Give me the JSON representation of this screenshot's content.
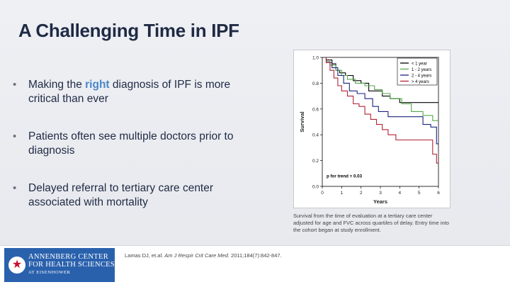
{
  "slide": {
    "title": "A Challenging Time in IPF",
    "bullets": [
      {
        "before": "Making the ",
        "accent": "right",
        "after": " diagnosis of IPF is more critical than ever"
      },
      {
        "text": "Patients often see multiple doctors prior to diagnosis"
      },
      {
        "text": "Delayed referral to tertiary care center associated with mortality"
      }
    ],
    "caption": "Survival from the time of evaluation at a tertiary care center adjusted for age and FVC across quartiles of delay. Entry time into the cohort began at study enrollment.",
    "citation": {
      "authors": "Lamas DJ, et.al. ",
      "journal": "Am J Respir Crit Care Med.",
      "details": " 2011;184(7):842-847."
    }
  },
  "logo": {
    "line1": "ANNENBERG CENTER",
    "line2": "FOR HEALTH SCIENCES",
    "line3": "AT EISENHOWER",
    "icon": "star-seal-icon"
  },
  "colors": {
    "title": "#1f2a44",
    "accent": "#4a86c8",
    "logo_bg": "#2a61ad",
    "logo_star": "#c8102e"
  },
  "chart_data": {
    "type": "line",
    "xlabel": "Years",
    "ylabel": "Survival",
    "xlim": [
      0,
      6
    ],
    "ylim": [
      0,
      1
    ],
    "xticks": [
      0,
      1,
      2,
      3,
      4,
      5,
      6
    ],
    "yticks": [
      0.0,
      0.2,
      0.4,
      0.6,
      0.8,
      1.0
    ],
    "ytick_labels": [
      "0.0",
      "0.2",
      "0.4",
      "0.6",
      "0.8",
      "1.0"
    ],
    "legend_position": "top-right",
    "annotation": "p for trend = 0.03",
    "series": [
      {
        "name": "< 1 year",
        "color": "#000000",
        "x": [
          0.2,
          0.5,
          0.7,
          0.9,
          1.2,
          1.6,
          2.0,
          2.4,
          3.1,
          3.5,
          4.0,
          6.0
        ],
        "y": [
          0.98,
          0.95,
          0.9,
          0.88,
          0.86,
          0.82,
          0.8,
          0.74,
          0.7,
          0.68,
          0.65,
          0.65
        ]
      },
      {
        "name": "1 - 2 years",
        "color": "#55a84a",
        "x": [
          0.2,
          0.4,
          0.7,
          1.0,
          1.3,
          1.7,
          2.2,
          2.7,
          3.1,
          3.5,
          4.1,
          4.6,
          5.2,
          5.7,
          6.0
        ],
        "y": [
          0.97,
          0.94,
          0.9,
          0.86,
          0.83,
          0.8,
          0.78,
          0.75,
          0.72,
          0.68,
          0.64,
          0.58,
          0.55,
          0.51,
          0.51
        ]
      },
      {
        "name": "2 - 4 years",
        "color": "#1a237e",
        "x": [
          0.2,
          0.5,
          0.8,
          1.1,
          1.4,
          1.8,
          2.2,
          2.6,
          2.9,
          3.4,
          4.2,
          5.2,
          5.6,
          5.9,
          6.0
        ],
        "y": [
          0.96,
          0.92,
          0.86,
          0.8,
          0.74,
          0.72,
          0.68,
          0.62,
          0.58,
          0.54,
          0.54,
          0.48,
          0.46,
          0.33,
          0.33
        ]
      },
      {
        "name": "> 4 years",
        "color": "#b22234",
        "x": [
          0.2,
          0.4,
          0.6,
          0.8,
          1.0,
          1.3,
          1.6,
          1.9,
          2.2,
          2.5,
          2.8,
          3.1,
          3.4,
          3.8,
          5.5,
          5.7,
          5.9,
          6.0
        ],
        "y": [
          0.96,
          0.9,
          0.84,
          0.78,
          0.74,
          0.7,
          0.64,
          0.62,
          0.56,
          0.52,
          0.48,
          0.44,
          0.4,
          0.36,
          0.36,
          0.25,
          0.18,
          0.18
        ]
      }
    ]
  }
}
